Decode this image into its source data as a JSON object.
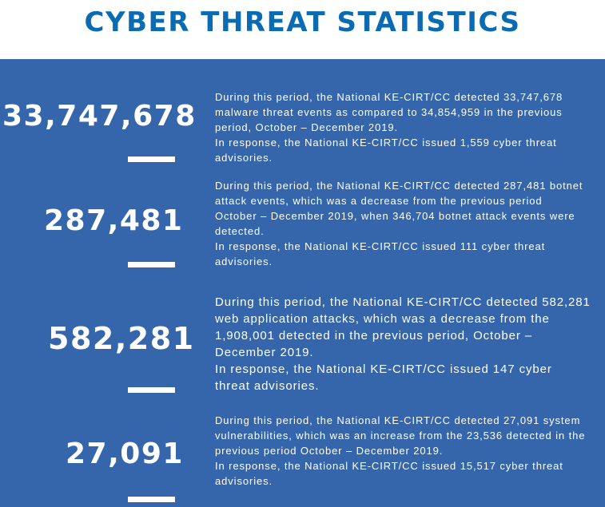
{
  "title": "CYBER THREAT STATISTICS",
  "colors": {
    "title": "#0a6bb3",
    "panel_background": "#3566ab",
    "text": "#ffffff"
  },
  "stats": [
    {
      "number": "33,747,678",
      "line1": "During this period, the National KE-CIRT/CC detected 33,747,678 malware threat events as compared to 34,854,959 in the previous period, October – December 2019.",
      "line2": "In response, the National KE-CIRT/CC issued 1,559 cyber threat advisories."
    },
    {
      "number": "287,481",
      "line1": "During this period, the National KE-CIRT/CC detected 287,481 botnet attack events, which was a decrease from the previous period October – December 2019, when 346,704 botnet attack events were detected.",
      "line2": "In response, the National KE-CIRT/CC issued 111 cyber threat advisories."
    },
    {
      "number": "582,281",
      "line1": "During this period, the National KE-CIRT/CC detected 582,281 web application attacks, which was a decrease from the 1,908,001 detected in the previous period, October – December 2019.",
      "line2": "In response, the National KE-CIRT/CC issued 147 cyber threat advisories."
    },
    {
      "number": "27,091",
      "line1": "During this period, the National KE-CIRT/CC detected 27,091 system vulnerabilities, which was an increase from the 23,536 detected in the previous period October – December 2019.",
      "line2": "In response, the National KE-CIRT/CC issued 15,517 cyber threat advisories."
    }
  ]
}
